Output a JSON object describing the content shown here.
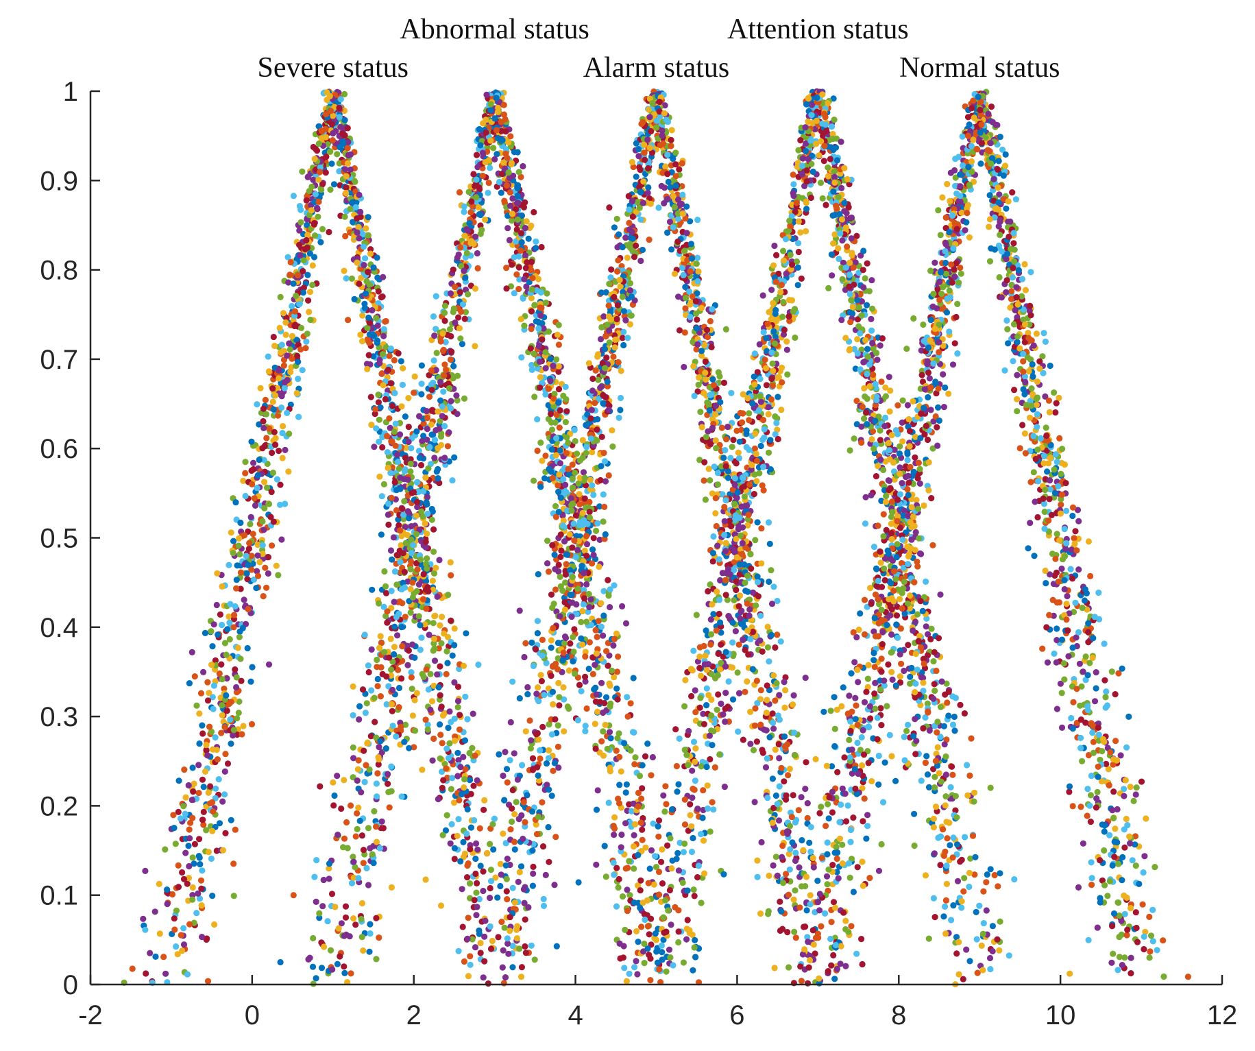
{
  "chart_data": {
    "type": "scatter",
    "title": "",
    "xlabel": "",
    "ylabel": "",
    "xlim": [
      -2,
      12
    ],
    "ylim": [
      0,
      1
    ],
    "xticks": [
      -2,
      0,
      2,
      4,
      6,
      8,
      10,
      12
    ],
    "yticks": [
      0,
      0.1,
      0.2,
      0.3,
      0.4,
      0.5,
      0.6,
      0.7,
      0.8,
      0.9,
      1
    ],
    "xtick_labels": [
      "-2",
      "0",
      "2",
      "4",
      "6",
      "8",
      "10",
      "12"
    ],
    "ytick_labels": [
      "0",
      "0.1",
      "0.2",
      "0.3",
      "0.4",
      "0.5",
      "0.6",
      "0.7",
      "0.8",
      "0.9",
      "1"
    ],
    "grid": false,
    "box": false,
    "point_colors": [
      "#0072BD",
      "#D95319",
      "#EDB120",
      "#7E2F8E",
      "#77AC30",
      "#4DBEEE",
      "#A2142F"
    ],
    "series": [
      {
        "center": 1,
        "curve": "triangular",
        "ends": [
          -1,
          3
        ],
        "peak": 1,
        "status_label": "Severe status"
      },
      {
        "center": 3,
        "curve": "triangular",
        "ends": [
          1,
          5
        ],
        "peak": 1,
        "status_label": "Abnormal status"
      },
      {
        "center": 5,
        "curve": "triangular",
        "ends": [
          3,
          7
        ],
        "peak": 1,
        "status_label": "Alarm status"
      },
      {
        "center": 7,
        "curve": "triangular",
        "ends": [
          5,
          9
        ],
        "peak": 1,
        "status_label": "Attention status"
      },
      {
        "center": 9,
        "curve": "triangular",
        "ends": [
          7,
          11
        ],
        "peak": 1,
        "status_label": "Normal status"
      }
    ],
    "annotations": [
      {
        "text": "Severe status",
        "series": 0
      },
      {
        "text": "Abnormal status",
        "series": 1
      },
      {
        "text": "Alarm status",
        "series": 2
      },
      {
        "text": "Attention status",
        "series": 3
      },
      {
        "text": "Normal status",
        "series": 4
      }
    ]
  }
}
